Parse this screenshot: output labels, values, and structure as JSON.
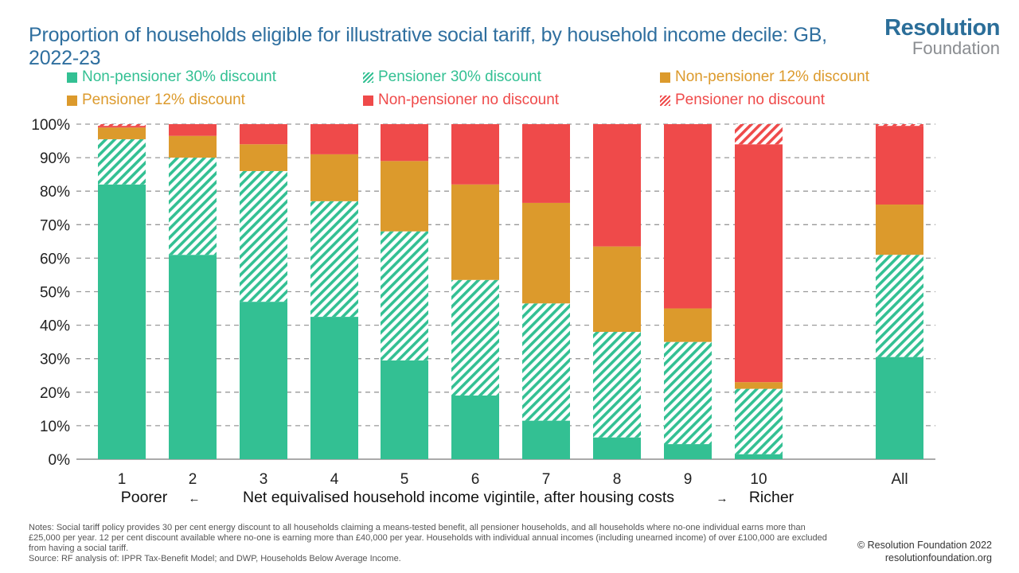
{
  "header": {
    "title": "Proportion of households eligible for illustrative social tariff, by household income decile: GB, 2022-23"
  },
  "logo": {
    "word1": "Resolution",
    "word2": "Foundation"
  },
  "colors": {
    "teal": "#33c093",
    "orange": "#dc9a2c",
    "red": "#ef4a4a",
    "title": "#2f6f9f",
    "grid": "#999999"
  },
  "chart_data": {
    "type": "bar",
    "stacked": true,
    "categories": [
      "1",
      "2",
      "3",
      "4",
      "5",
      "6",
      "7",
      "8",
      "9",
      "10",
      "All"
    ],
    "xlabel": {
      "left": "Poorer",
      "left_arrow": "←",
      "center": "Net equivalised household income vigintile, after housing costs",
      "right_arrow": "→",
      "right": "Richer"
    },
    "ylim": [
      0,
      100
    ],
    "yticks": [
      "0%",
      "10%",
      "20%",
      "30%",
      "40%",
      "50%",
      "60%",
      "70%",
      "80%",
      "90%",
      "100%"
    ],
    "grid": true,
    "legend_position": "top",
    "series": [
      {
        "name": "Non-pensioner 30% discount",
        "color": "#33c093",
        "pattern": "solid",
        "values": [
          82,
          61,
          47,
          42.5,
          29.5,
          19,
          11.5,
          6.5,
          4.5,
          1.5,
          30.5
        ]
      },
      {
        "name": "Pensioner 30% discount",
        "color": "#33c093",
        "pattern": "hatch",
        "values": [
          13.5,
          29,
          39,
          34.5,
          38.5,
          34.5,
          35,
          31.5,
          30.5,
          19.5,
          30.5
        ]
      },
      {
        "name": "Non-pensioner 12% discount",
        "color": "#dc9a2c",
        "pattern": "solid",
        "values": [
          3.5,
          6.5,
          8,
          14,
          21,
          28.5,
          30,
          25.5,
          10,
          2,
          15
        ]
      },
      {
        "name": "Pensioner 12% discount",
        "color": "#dc9a2c",
        "pattern": "solid",
        "values": [
          0,
          0,
          0,
          0,
          0,
          0,
          0,
          0,
          0,
          0,
          0
        ]
      },
      {
        "name": "Non-pensioner no discount",
        "color": "#ef4a4a",
        "pattern": "solid",
        "values": [
          0.5,
          3.5,
          6,
          9,
          11,
          18,
          23.5,
          36.5,
          55,
          71,
          23.5
        ]
      },
      {
        "name": "Pensioner no discount",
        "color": "#ef4a4a",
        "pattern": "hatch",
        "values": [
          0.5,
          0,
          0,
          0,
          0,
          0,
          0,
          0,
          0,
          6,
          0.5
        ]
      }
    ]
  },
  "footer": {
    "notes": "Notes: Social tariff policy provides 30 per cent energy discount to all households claiming a means-tested benefit, all pensioner households, and all households where no-one individual earns more than £25,000 per year. 12 per cent discount available where no-one is earning more than £40,000 per year. Households with individual annual incomes (including unearned income) of over £100,000 are excluded from having a social tariff.",
    "source": "Source: RF analysis of: IPPR Tax-Benefit Model; and DWP, Households Below Average Income.",
    "copyright": "© Resolution Foundation 2022",
    "website": "resolutionfoundation.org"
  }
}
